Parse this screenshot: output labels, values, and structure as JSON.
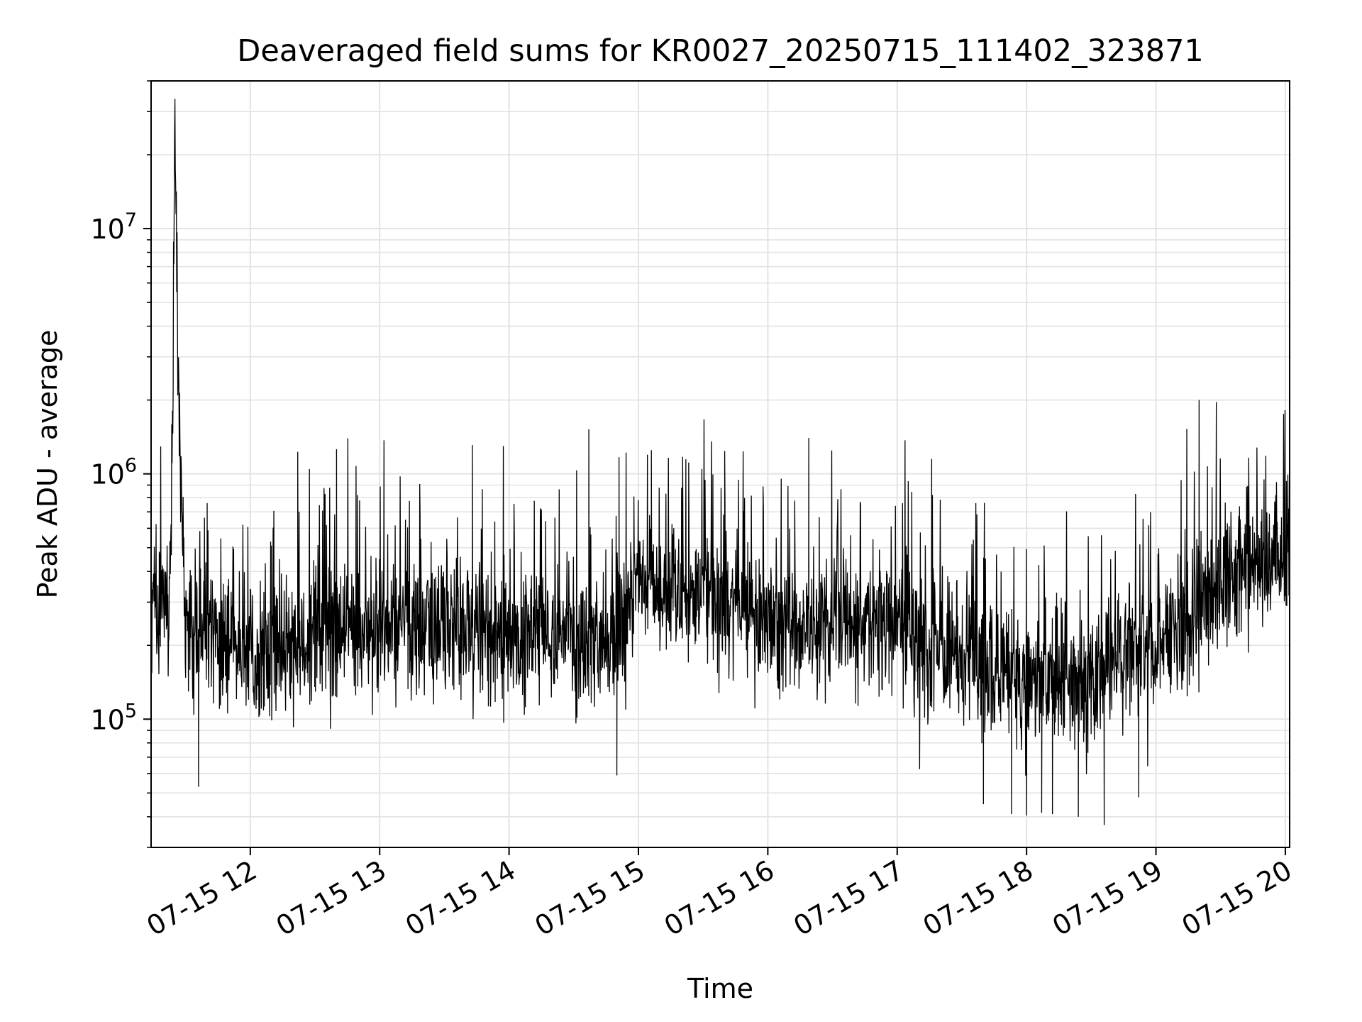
{
  "chart_data": {
    "type": "line",
    "title": "Deaveraged field sums for KR0027_20250715_111402_323871",
    "xlabel": "Time",
    "ylabel": "Peak ADU - average",
    "yscale": "log",
    "xlim": [
      "2025-07-15 11:14",
      "2025-07-15 20:02"
    ],
    "ylim": [
      30000,
      40000000
    ],
    "grid": true,
    "x_tick_labels": [
      "07-15 12",
      "07-15 13",
      "07-15 14",
      "07-15 15",
      "07-15 16",
      "07-15 17",
      "07-15 18",
      "07-15 19",
      "07-15 20"
    ],
    "y_tick_labels": [
      {
        "base": "10",
        "exp": "5",
        "value": 100000
      },
      {
        "base": "10",
        "exp": "6",
        "value": 1000000
      },
      {
        "base": "10",
        "exp": "7",
        "value": 10000000
      }
    ],
    "series": [
      {
        "line_color": "#000000",
        "x": [
          "2025-07-15 11:14",
          "2025-07-15 11:23",
          "2025-07-15 11:24",
          "2025-07-15 11:25",
          "2025-07-15 11:27",
          "2025-07-15 11:30",
          "2025-07-15 11:45",
          "2025-07-15 12:00",
          "2025-07-15 12:30",
          "2025-07-15 13:00",
          "2025-07-15 13:30",
          "2025-07-15 14:00",
          "2025-07-15 14:30",
          "2025-07-15 14:50",
          "2025-07-15 15:00",
          "2025-07-15 15:30",
          "2025-07-15 16:00",
          "2025-07-15 16:30",
          "2025-07-15 17:00",
          "2025-07-15 17:30",
          "2025-07-15 18:00",
          "2025-07-15 18:30",
          "2025-07-15 19:00",
          "2025-07-15 19:20",
          "2025-07-15 19:30",
          "2025-07-15 19:45",
          "2025-07-15 20:00",
          "2025-07-15 20:02"
        ],
        "values": [
          280000,
          300000,
          1800000,
          30000000,
          1500000,
          250000,
          200000,
          180000,
          230000,
          250000,
          230000,
          210000,
          210000,
          200000,
          350000,
          320000,
          250000,
          240000,
          240000,
          160000,
          140000,
          150000,
          190000,
          260000,
          380000,
          400000,
          480000,
          500000
        ],
        "peaks": [
          {
            "x": "2025-07-15 11:40",
            "value": 760000
          },
          {
            "x": "2025-07-15 12:22",
            "value": 1230000
          },
          {
            "x": "2025-07-15 12:40",
            "value": 1260000
          },
          {
            "x": "2025-07-15 13:02",
            "value": 1370000
          },
          {
            "x": "2025-07-15 13:43",
            "value": 1310000
          },
          {
            "x": "2025-07-15 14:37",
            "value": 1520000
          },
          {
            "x": "2025-07-15 14:51",
            "value": 1170000
          },
          {
            "x": "2025-07-15 15:06",
            "value": 1250000
          },
          {
            "x": "2025-07-15 15:40",
            "value": 1240000
          },
          {
            "x": "2025-07-15 16:19",
            "value": 1400000
          },
          {
            "x": "2025-07-15 17:16",
            "value": 1150000
          },
          {
            "x": "2025-07-15 19:20",
            "value": 2000000
          },
          {
            "x": "2025-07-15 19:28",
            "value": 1960000
          }
        ],
        "troughs": [
          {
            "x": "2025-07-15 11:36",
            "value": 53000
          },
          {
            "x": "2025-07-15 14:50",
            "value": 59000
          },
          {
            "x": "2025-07-15 17:40",
            "value": 45000
          },
          {
            "x": "2025-07-15 17:53",
            "value": 41000
          },
          {
            "x": "2025-07-15 18:00",
            "value": 40500
          },
          {
            "x": "2025-07-15 18:07",
            "value": 41500
          },
          {
            "x": "2025-07-15 18:12",
            "value": 41000
          },
          {
            "x": "2025-07-15 18:24",
            "value": 40000
          },
          {
            "x": "2025-07-15 18:36",
            "value": 37000
          },
          {
            "x": "2025-07-15 18:52",
            "value": 48000
          }
        ]
      }
    ]
  }
}
